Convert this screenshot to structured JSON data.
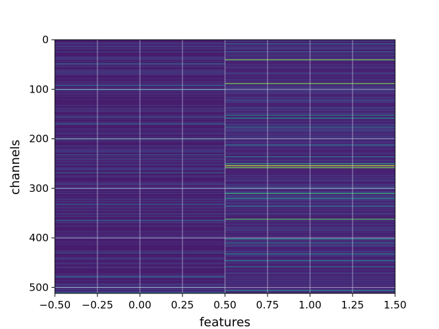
{
  "chart_data": {
    "type": "heatmap",
    "title": "",
    "xlabel": "features",
    "ylabel": "channels",
    "xlim": [
      -0.5,
      1.5
    ],
    "ylim": [
      512,
      0
    ],
    "x_ticks": [
      "−0.50",
      "−0.25",
      "0.00",
      "0.25",
      "0.50",
      "0.75",
      "1.00",
      "1.25",
      "1.50"
    ],
    "x_tick_values": [
      -0.5,
      -0.25,
      0.0,
      0.25,
      0.5,
      0.75,
      1.0,
      1.25,
      1.5
    ],
    "y_ticks": [
      "0",
      "100",
      "200",
      "300",
      "400",
      "500"
    ],
    "y_tick_values": [
      0,
      100,
      200,
      300,
      400,
      500
    ],
    "grid": true,
    "colormap": "viridis",
    "colors": {
      "background": "#3f2a7f",
      "grid": "#cfcfe6",
      "axis": "#000000"
    },
    "columns": [
      {
        "feature": 0,
        "base_level": 0.1,
        "bright_channels": [
          {
            "channel": 48,
            "level": 0.4
          },
          {
            "channel": 92,
            "level": 0.45
          },
          {
            "channel": 100,
            "level": 0.55
          },
          {
            "channel": 156,
            "level": 0.35
          },
          {
            "channel": 170,
            "level": 0.4
          },
          {
            "channel": 200,
            "level": 0.6
          },
          {
            "channel": 232,
            "level": 0.35
          },
          {
            "channel": 268,
            "level": 0.4
          },
          {
            "channel": 300,
            "level": 0.35
          },
          {
            "channel": 332,
            "level": 0.35
          },
          {
            "channel": 364,
            "level": 0.4
          },
          {
            "channel": 430,
            "level": 0.35
          },
          {
            "channel": 478,
            "level": 0.4
          },
          {
            "channel": 500,
            "level": 0.45
          },
          {
            "channel": 510,
            "level": 0.4
          }
        ]
      },
      {
        "feature": 1,
        "base_level": 0.12,
        "bright_channels": [
          {
            "channel": 8,
            "level": 0.45
          },
          {
            "channel": 24,
            "level": 0.4
          },
          {
            "channel": 40,
            "level": 0.85
          },
          {
            "channel": 88,
            "level": 0.85
          },
          {
            "channel": 152,
            "level": 0.55
          },
          {
            "channel": 158,
            "level": 0.6
          },
          {
            "channel": 176,
            "level": 0.45
          },
          {
            "channel": 212,
            "level": 0.45
          },
          {
            "channel": 236,
            "level": 0.5
          },
          {
            "channel": 250,
            "level": 0.7
          },
          {
            "channel": 254,
            "level": 0.95
          },
          {
            "channel": 258,
            "level": 0.85
          },
          {
            "channel": 300,
            "level": 0.45
          },
          {
            "channel": 310,
            "level": 0.75
          },
          {
            "channel": 320,
            "level": 0.55
          },
          {
            "channel": 336,
            "level": 0.45
          },
          {
            "channel": 362,
            "level": 0.8
          },
          {
            "channel": 402,
            "level": 0.6
          },
          {
            "channel": 410,
            "level": 0.5
          },
          {
            "channel": 432,
            "level": 0.55
          },
          {
            "channel": 446,
            "level": 0.5
          },
          {
            "channel": 458,
            "level": 0.45
          },
          {
            "channel": 506,
            "level": 0.6
          }
        ]
      }
    ]
  }
}
